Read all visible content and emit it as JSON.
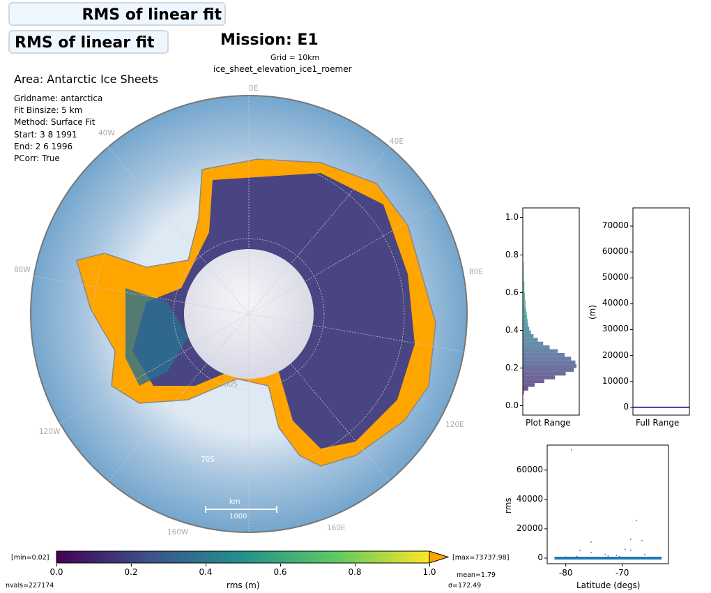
{
  "title": {
    "main": "Mission: E1",
    "back_box": "RMS of linear fit",
    "front_box": "RMS of linear fit",
    "grid": "Grid = 10km",
    "dataset": "ice_sheet_elevation_ice1_roemer"
  },
  "info": {
    "area": "Area: Antarctic Ice Sheets",
    "lines": [
      "Gridname: antarctica",
      "Fit Binsize: 5 km",
      "Method: Surface Fit",
      "Start: 3 8 1991",
      "End: 2 6 1996",
      "PCorr: True"
    ]
  },
  "map": {
    "lon_labels": [
      "0E",
      "40E",
      "80E",
      "120E",
      "160E",
      "160W",
      "120W",
      "80W",
      "40W"
    ],
    "lat_labels": [
      "80S",
      "70S"
    ],
    "scale_unit": "km",
    "scale_value": "1000"
  },
  "colorbar": {
    "min_label": "[min=0.02]",
    "max_label": "[max=73737.98]",
    "ticks": [
      "0.0",
      "0.2",
      "0.4",
      "0.6",
      "0.8",
      "1.0"
    ],
    "label": "rms (m)",
    "mean": "mean=1.79",
    "sigma": "σ=172.49",
    "nvals": "nvals=227174",
    "colors": [
      "#440154",
      "#3b528b",
      "#21918c",
      "#5ec962",
      "#fde725"
    ],
    "extend_color": "#ffa500"
  },
  "chart_data": [
    {
      "type": "histogram",
      "title": "",
      "xlabel": "Plot Range",
      "ylabel": "",
      "orientation": "horizontal",
      "ylim": [
        -0.05,
        1.05
      ],
      "yticks": [
        "0.0",
        "0.2",
        "0.4",
        "0.6",
        "0.8",
        "1.0"
      ],
      "bin_edges_start": 0.0,
      "bin_width": 0.02,
      "counts": [
        0,
        0,
        0,
        2,
        10,
        22,
        40,
        60,
        80,
        95,
        100,
        98,
        90,
        78,
        65,
        50,
        38,
        28,
        20,
        15,
        12,
        10,
        9,
        8,
        7,
        6,
        5,
        5,
        4,
        4,
        3,
        3,
        3,
        2,
        2,
        2,
        2,
        2,
        1,
        1,
        1,
        1,
        1,
        1,
        1,
        1,
        1,
        1,
        1,
        1
      ]
    },
    {
      "type": "histogram",
      "title": "",
      "xlabel": "Full Range",
      "ylabel": "(m)",
      "ylim": [
        -3000,
        77000
      ],
      "yticks": [
        "0",
        "10000",
        "20000",
        "30000",
        "40000",
        "50000",
        "60000",
        "70000"
      ],
      "note": "all values concentrated near 0"
    },
    {
      "type": "scatter",
      "xlabel": "Latitude (degs)",
      "ylabel": "rms",
      "xlim": [
        -83.3,
        -61.8
      ],
      "ylim": [
        -3800,
        77000
      ],
      "xticks": [
        "-80",
        "-70"
      ],
      "yticks": [
        "0",
        "20000",
        "40000",
        "60000"
      ],
      "baseline_x_range": [
        -82,
        -63
      ],
      "points": [
        [
          -79,
          73700
        ],
        [
          -67.5,
          25500
        ],
        [
          -68.5,
          12800
        ],
        [
          -66.5,
          12000
        ],
        [
          -75.5,
          11000
        ],
        [
          -77.5,
          5000
        ],
        [
          -75.5,
          4000
        ],
        [
          -68.5,
          5500
        ],
        [
          -69.5,
          6000
        ],
        [
          -73,
          2500
        ],
        [
          -71,
          2000
        ],
        [
          -72.5,
          1500
        ],
        [
          -66,
          2500
        ],
        [
          -80,
          800
        ],
        [
          -78,
          1200
        ],
        [
          -70.5,
          1000
        ]
      ]
    }
  ]
}
